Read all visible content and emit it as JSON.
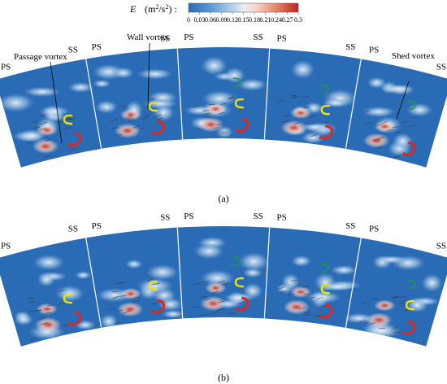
{
  "colorbar": {
    "variable": "E",
    "unit_open": "(m",
    "unit_exp1": "2",
    "unit_mid": "/s",
    "unit_exp2": "2",
    "unit_close": ") :",
    "ticks": [
      "0",
      "0.03",
      "0.06",
      "0.09",
      "0.12",
      "0.15",
      "0.18",
      "0.21",
      "0.24",
      "0.27",
      "0.3"
    ],
    "colors": [
      "#2b6cb0",
      "#3f82c4",
      "#5d9ad3",
      "#86b6e0",
      "#b3d0ec",
      "#e8eef5",
      "#f6d9cf",
      "#f0b09b",
      "#e4846b",
      "#d3533f",
      "#bb2229"
    ]
  },
  "annotations": {
    "passage_vortex": "Passage vortex",
    "wall_vortex": "Wall vortex",
    "shed_vortex": "Shed vortex"
  },
  "labels": {
    "ps": "PS",
    "ss": "SS"
  },
  "panels": [
    {
      "caption": "(a)"
    },
    {
      "caption": "(b)"
    }
  ],
  "vortex_colors": {
    "passage": "#d42a2a",
    "wall": "#f2e200",
    "shed": "#1e9a4a"
  },
  "colors": {
    "field_base": "#2a6bb5",
    "field_light": "#8fb9e3",
    "field_hot": "#c8353b"
  }
}
